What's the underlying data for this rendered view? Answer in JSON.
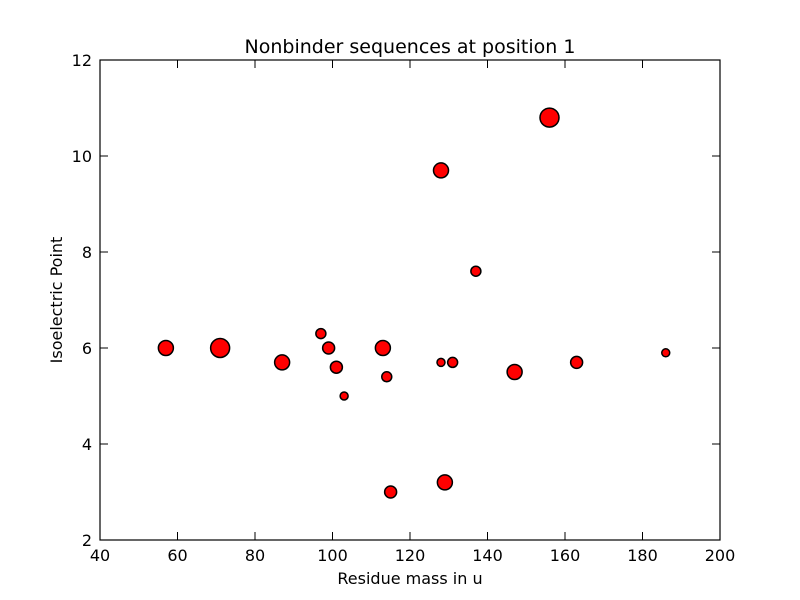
{
  "chart_data": {
    "type": "scatter",
    "title": "Nonbinder sequences at position 1",
    "xlabel": "Residue mass in u",
    "ylabel": "Isoelectric Point",
    "xlim": [
      40,
      200
    ],
    "ylim": [
      2,
      12
    ],
    "xticks": [
      "40",
      "60",
      "80",
      "100",
      "120",
      "140",
      "160",
      "180",
      "200"
    ],
    "yticks": [
      "2",
      "4",
      "6",
      "8",
      "10",
      "12"
    ],
    "grid": false,
    "legend": "none",
    "marker_color": "#ff0000",
    "marker_edge_color": "#000000",
    "points": [
      {
        "x": 57,
        "y": 6.0,
        "s": 3
      },
      {
        "x": 71,
        "y": 6.0,
        "s": 5
      },
      {
        "x": 87,
        "y": 5.7,
        "s": 3
      },
      {
        "x": 97,
        "y": 6.3,
        "s": 1
      },
      {
        "x": 99,
        "y": 6.0,
        "s": 2
      },
      {
        "x": 101,
        "y": 5.6,
        "s": 2
      },
      {
        "x": 103,
        "y": 5.0,
        "s": 0
      },
      {
        "x": 113,
        "y": 6.0,
        "s": 3
      },
      {
        "x": 114,
        "y": 5.4,
        "s": 1
      },
      {
        "x": 115,
        "y": 3.0,
        "s": 2
      },
      {
        "x": 128,
        "y": 5.7,
        "s": 0
      },
      {
        "x": 128,
        "y": 9.7,
        "s": 3
      },
      {
        "x": 129,
        "y": 3.2,
        "s": 3
      },
      {
        "x": 131,
        "y": 5.7,
        "s": 1
      },
      {
        "x": 137,
        "y": 7.6,
        "s": 1
      },
      {
        "x": 147,
        "y": 5.5,
        "s": 3
      },
      {
        "x": 156,
        "y": 10.8,
        "s": 5
      },
      {
        "x": 163,
        "y": 5.7,
        "s": 2
      },
      {
        "x": 186,
        "y": 5.9,
        "s": 0
      }
    ]
  }
}
